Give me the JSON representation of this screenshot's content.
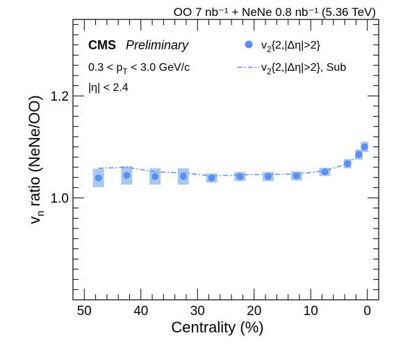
{
  "header": {
    "top_label": "OO 7 nb⁻¹ + NeNe 0.8 nb⁻¹ (5.36 TeV)"
  },
  "annotations": {
    "experiment": "CMS",
    "status": "Preliminary",
    "pt_cut": "0.3 < p",
    "pt_sub": "T",
    "pt_cut_rest": " < 3.0 GeV/c",
    "eta_cut": "|η| < 2.4"
  },
  "legend": {
    "marker_v": "v",
    "marker_sub": "2",
    "marker_rest": "{2,|Δη|>2}",
    "line_v": "v",
    "line_sub": "2",
    "line_rest": "{2,|Δη|>2}, Sub"
  },
  "colors": {
    "marker": "#5b8ff0",
    "band": "#a9c7f3",
    "line": "#5b8ff0"
  },
  "chart_data": {
    "type": "scatter",
    "title": "",
    "xlabel": "Centrality (%)",
    "ylabel_main": "v",
    "ylabel_sub": "n",
    "ylabel_rest": " ratio (NeNe/OO)",
    "xlim": [
      52,
      -2
    ],
    "ylim": [
      0.8,
      1.35
    ],
    "x_ticks": [
      50,
      40,
      30,
      20,
      10,
      0
    ],
    "x_tick_labels": [
      "50",
      "40",
      "30",
      "20",
      "10",
      "0"
    ],
    "y_ticks": [
      1.0,
      1.2
    ],
    "y_tick_labels": [
      "1.0",
      "1.2"
    ],
    "series": [
      {
        "name": "v2{2,|Δη|>2}",
        "style": "markers",
        "x": [
          47.5,
          42.5,
          37.5,
          32.5,
          27.5,
          22.5,
          17.5,
          12.5,
          7.5,
          3.5,
          1.5,
          0.5
        ],
        "y": [
          1.039,
          1.044,
          1.042,
          1.042,
          1.039,
          1.042,
          1.042,
          1.043,
          1.051,
          1.067,
          1.085,
          1.1
        ],
        "syst": [
          0.018,
          0.018,
          0.016,
          0.016,
          0.009,
          0.009,
          0.009,
          0.009,
          0.008,
          0.009,
          0.01,
          0.01
        ]
      },
      {
        "name": "v2{2,|Δη|>2}, Sub",
        "style": "dash-dot line",
        "x": [
          47.5,
          42.5,
          37.5,
          32.5,
          27.5,
          22.5,
          17.5,
          12.5,
          7.5,
          3.5,
          1.5,
          0.5
        ],
        "y": [
          1.058,
          1.06,
          1.051,
          1.049,
          1.043,
          1.045,
          1.046,
          1.047,
          1.053,
          1.067,
          1.084,
          1.1
        ]
      }
    ]
  }
}
